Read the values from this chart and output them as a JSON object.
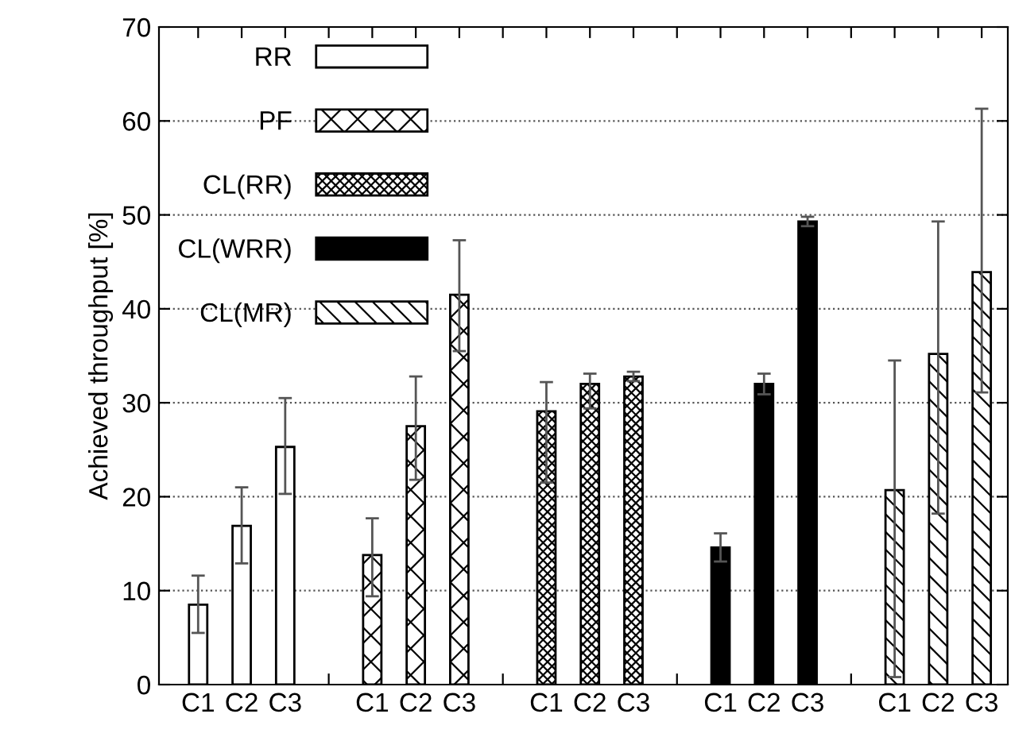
{
  "chart_data": {
    "type": "bar",
    "ylabel": "Achieved throughput [%]",
    "categories": [
      "C1",
      "C2",
      "C3",
      null,
      "C1",
      "C2",
      "C3",
      null,
      "C1",
      "C2",
      "C3",
      null,
      "C1",
      "C2",
      "C3",
      null,
      "C1",
      "C2",
      "C3"
    ],
    "series": [
      {
        "name": "RR",
        "color": "#ffffff",
        "values": [
          8.5,
          16.9,
          25.3,
          null,
          null,
          null,
          null,
          null,
          null,
          null,
          null,
          null,
          null,
          null,
          null,
          null,
          null,
          null,
          null
        ],
        "errors": [
          [
            5.5,
            11.6
          ],
          [
            12.9,
            21.0
          ],
          [
            20.3,
            30.5
          ],
          null,
          null,
          null,
          null,
          null,
          null,
          null,
          null,
          null,
          null,
          null,
          null,
          null,
          null,
          null,
          null
        ]
      },
      {
        "name": "PF",
        "color": "#000000",
        "values": [
          null,
          null,
          null,
          null,
          13.8,
          27.5,
          41.5,
          null,
          null,
          null,
          null,
          null,
          null,
          null,
          null,
          null,
          null,
          null,
          null
        ],
        "errors": [
          null,
          null,
          null,
          null,
          [
            9.4,
            17.7
          ],
          [
            21.8,
            32.8
          ],
          [
            35.5,
            47.3
          ],
          null,
          null,
          null,
          null,
          null,
          null,
          null,
          null,
          null,
          null,
          null,
          null
        ]
      },
      {
        "name": "CL(RR)",
        "color": "#000000",
        "values": [
          null,
          null,
          null,
          null,
          null,
          null,
          null,
          null,
          29.1,
          32.0,
          32.8,
          null,
          null,
          null,
          null,
          null,
          null,
          null,
          null
        ],
        "errors": [
          null,
          null,
          null,
          null,
          null,
          null,
          null,
          null,
          [
            21.5,
            32.2
          ],
          [
            29.4,
            33.1
          ],
          [
            32.3,
            33.3
          ],
          null,
          null,
          null,
          null,
          null,
          null,
          null,
          null
        ]
      },
      {
        "name": "CL(WRR)",
        "color": "#000000",
        "values": [
          null,
          null,
          null,
          null,
          null,
          null,
          null,
          null,
          null,
          null,
          null,
          null,
          14.6,
          32.0,
          49.3,
          null,
          null,
          null,
          null
        ],
        "errors": [
          null,
          null,
          null,
          null,
          null,
          null,
          null,
          null,
          null,
          null,
          null,
          null,
          [
            13.1,
            16.1
          ],
          [
            30.9,
            33.1
          ],
          [
            48.8,
            49.8
          ],
          null,
          null,
          null,
          null
        ]
      },
      {
        "name": "CL(MR)",
        "color": "#000000",
        "values": [
          null,
          null,
          null,
          null,
          null,
          null,
          null,
          null,
          null,
          null,
          null,
          null,
          null,
          null,
          null,
          null,
          20.7,
          35.2,
          43.9
        ],
        "errors": [
          null,
          null,
          null,
          null,
          null,
          null,
          null,
          null,
          null,
          null,
          null,
          null,
          null,
          null,
          null,
          null,
          [
            0.8,
            34.5
          ],
          [
            18.2,
            49.3
          ],
          [
            31.1,
            61.3
          ]
        ]
      }
    ],
    "ylim": [
      0,
      70
    ],
    "yticks": [
      0,
      10,
      20,
      30,
      40,
      50,
      60,
      70
    ],
    "grid": "y",
    "legend": "top left"
  }
}
